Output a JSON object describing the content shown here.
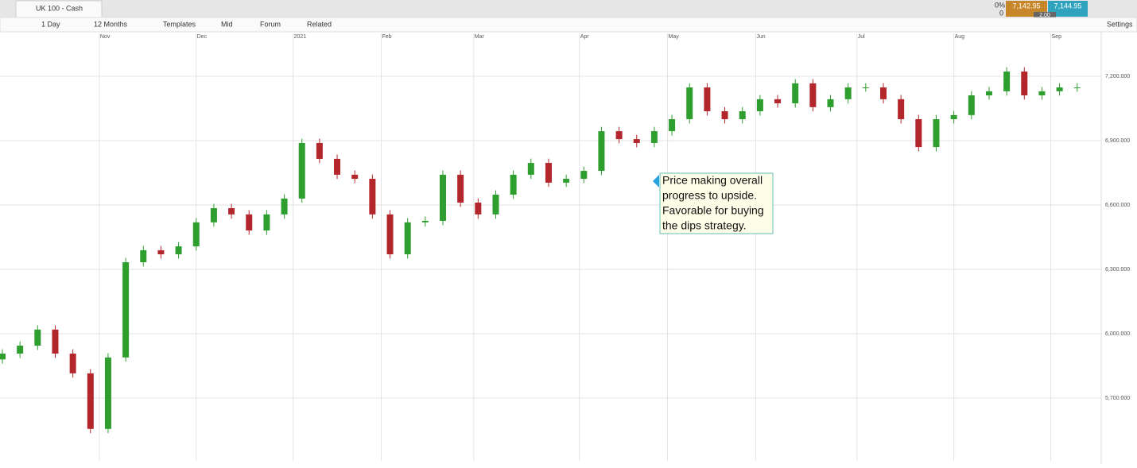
{
  "app": {
    "tab_title": "UK 100 - Cash",
    "toolbar": [
      "1 Day",
      "12 Months",
      "Templates",
      "Mid",
      "Forum",
      "Related"
    ],
    "settings": "Settings",
    "change_pct": "0%",
    "change": "0",
    "sell": "7,142.95",
    "buy": "7,144.95",
    "spread": "2.00"
  },
  "chart_data": {
    "type": "candlestick",
    "annotation": [
      "Price making overall",
      "progress to upside.",
      "Favorable for buying",
      "the dips strategy."
    ],
    "up_color": "#2e9e2e",
    "down_color": "#b3262b",
    "grid": true,
    "xlim": [
      0,
      250
    ],
    "xticks": [
      {
        "value": 22,
        "label": "Nov"
      },
      {
        "value": 44,
        "label": "Dec"
      },
      {
        "value": 66,
        "label": "2021"
      },
      {
        "value": 86,
        "label": "Feb"
      },
      {
        "value": 107,
        "label": "Mar"
      },
      {
        "value": 131,
        "label": "Apr"
      },
      {
        "value": 151,
        "label": "May"
      },
      {
        "value": 171,
        "label": "Jun"
      },
      {
        "value": 194,
        "label": "Jul"
      },
      {
        "value": 216,
        "label": "Aug"
      },
      {
        "value": 238,
        "label": "Sep"
      }
    ],
    "ylim": [
      5407,
      7363
    ],
    "yticks": [
      {
        "value": 5700,
        "label": "5,700.000"
      },
      {
        "value": 6000,
        "label": "6,000.000"
      },
      {
        "value": 6300,
        "label": "6,300.000"
      },
      {
        "value": 6600,
        "label": "6,600.000"
      },
      {
        "value": 6900,
        "label": "6,900.000"
      },
      {
        "value": 7200,
        "label": "7,200.000"
      }
    ],
    "x": [
      0,
      4,
      8,
      12,
      16,
      20,
      24,
      28,
      32,
      36,
      40,
      44,
      48,
      52,
      56,
      60,
      64,
      68,
      72,
      76,
      80,
      84,
      88,
      92,
      96,
      100,
      104,
      108,
      112,
      116,
      120,
      124,
      128,
      132,
      136,
      140,
      144,
      148,
      152,
      156,
      160,
      164,
      168,
      172,
      176,
      180,
      184,
      188,
      192,
      196,
      200,
      204,
      208,
      212,
      216,
      220,
      224,
      228,
      232,
      236,
      240,
      244
    ],
    "open": [
      5880,
      5907,
      5944,
      6019,
      5907,
      5815,
      5556,
      5889,
      6333,
      6389,
      6370,
      6407,
      6519,
      6585,
      6556,
      6481,
      6556,
      6630,
      6889,
      6815,
      6741,
      6722,
      6556,
      6370,
      6519,
      6526,
      6741,
      6611,
      6556,
      6648,
      6741,
      6796,
      6704,
      6722,
      6759,
      6944,
      6907,
      6889,
      6944,
      7000,
      7148,
      7037,
      7000,
      7037,
      7093,
      7074,
      7167,
      7056,
      7093,
      7148,
      7148,
      7093,
      7000,
      6870,
      7000,
      7019,
      7111,
      7130,
      7222,
      7111,
      7130,
      7148
    ],
    "high": [
      5927,
      5964,
      6039,
      6039,
      5927,
      5835,
      5909,
      6353,
      6409,
      6409,
      6427,
      6539,
      6605,
      6605,
      6576,
      6576,
      6650,
      6909,
      6909,
      6835,
      6761,
      6742,
      6576,
      6539,
      6546,
      6761,
      6761,
      6631,
      6668,
      6761,
      6816,
      6816,
      6742,
      6779,
      6964,
      6964,
      6927,
      6964,
      7020,
      7168,
      7168,
      7057,
      7057,
      7113,
      7113,
      7187,
      7187,
      7113,
      7168,
      7168,
      7168,
      7113,
      7020,
      7020,
      7039,
      7131,
      7150,
      7242,
      7242,
      7150,
      7168,
      7168
    ],
    "low": [
      5860,
      5887,
      5924,
      5887,
      5795,
      5536,
      5536,
      5869,
      6313,
      6350,
      6350,
      6387,
      6499,
      6536,
      6461,
      6461,
      6536,
      6610,
      6795,
      6721,
      6702,
      6536,
      6350,
      6350,
      6499,
      6506,
      6591,
      6536,
      6536,
      6628,
      6721,
      6684,
      6684,
      6702,
      6739,
      6887,
      6869,
      6869,
      6924,
      6980,
      7017,
      6980,
      6980,
      7017,
      7054,
      7054,
      7036,
      7036,
      7073,
      7128,
      7073,
      6980,
      6850,
      6850,
      6980,
      6999,
      7091,
      7110,
      7091,
      7091,
      7110,
      7128
    ],
    "close": [
      5907,
      5944,
      6019,
      5907,
      5815,
      5556,
      5889,
      6333,
      6389,
      6370,
      6407,
      6519,
      6585,
      6556,
      6481,
      6556,
      6630,
      6889,
      6815,
      6741,
      6722,
      6556,
      6370,
      6519,
      6526,
      6741,
      6611,
      6556,
      6648,
      6741,
      6796,
      6704,
      6722,
      6759,
      6944,
      6907,
      6889,
      6944,
      7000,
      7148,
      7037,
      7000,
      7037,
      7093,
      7074,
      7167,
      7056,
      7093,
      7148,
      7148,
      7093,
      7000,
      6870,
      7000,
      7019,
      7111,
      7130,
      7222,
      7111,
      7130,
      7148,
      7148
    ]
  }
}
